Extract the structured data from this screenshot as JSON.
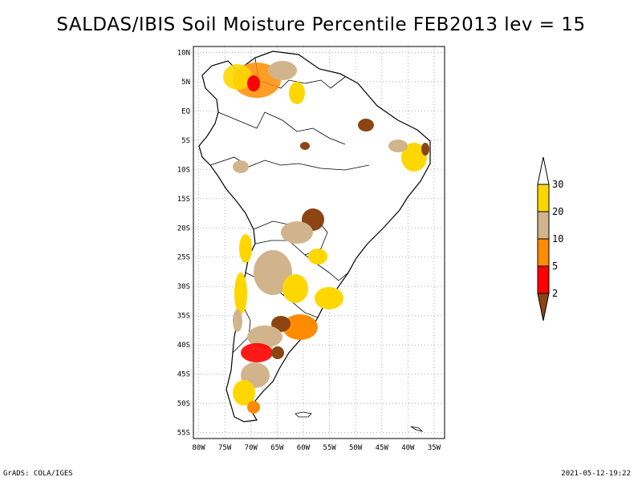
{
  "title": "SALDAS/IBIS Soil Moisture Percentile FEB2013 lev = 15",
  "footer": {
    "left": "GrADS: COLA/IGES",
    "right": "2021-05-12-19:22"
  },
  "map": {
    "lat_labels": [
      "10N",
      "5N",
      "EQ",
      "5S",
      "10S",
      "15S",
      "20S",
      "25S",
      "30S",
      "35S",
      "40S",
      "45S",
      "50S",
      "55S"
    ],
    "lat_values": [
      10,
      5,
      0,
      -5,
      -10,
      -15,
      -20,
      -25,
      -30,
      -35,
      -40,
      -45,
      -50,
      -55
    ],
    "lon_labels": [
      "80W",
      "75W",
      "70W",
      "65W",
      "60W",
      "55W",
      "50W",
      "45W",
      "40W",
      "35W"
    ],
    "lon_values": [
      -80,
      -75,
      -70,
      -65,
      -60,
      -55,
      -50,
      -45,
      -40,
      -35
    ],
    "extent": {
      "lon_min": -81.0,
      "lon_max": -33.0,
      "lat_min": -56.0,
      "lat_max": 11.0
    }
  },
  "colorbar": {
    "labels": [
      "30",
      "20",
      "10",
      "5",
      "2"
    ],
    "bins": [
      {
        "range": ">30",
        "color": "#ffffff"
      },
      {
        "range": "20-30",
        "color": "#ffd700"
      },
      {
        "range": "10-20",
        "color": "#d2b48c"
      },
      {
        "range": "5-10",
        "color": "#ff8c00"
      },
      {
        "range": "2-5",
        "color": "#ff0000"
      },
      {
        "range": "<2",
        "color": "#8b4513"
      }
    ]
  }
}
